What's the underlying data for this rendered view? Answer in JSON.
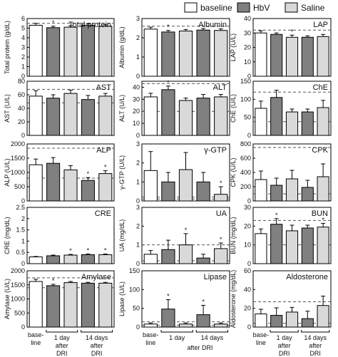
{
  "legend": {
    "items": [
      {
        "label": "baseline",
        "color": "#ffffff"
      },
      {
        "label": "HbV",
        "color": "#808080"
      },
      {
        "label": "Saline",
        "color": "#d9d9d9"
      }
    ]
  },
  "group_labels": {
    "baseline": [
      "base-",
      "line"
    ],
    "day1": [
      "1 day",
      "after",
      "DRI"
    ],
    "day14": [
      "14 days",
      "after",
      "DRI"
    ],
    "day1_short": [
      "1 day"
    ],
    "day14_short": [
      "14 days"
    ],
    "after_dri": "after DRI"
  },
  "colors": {
    "baseline": "#ffffff",
    "hbv": "#808080",
    "saline": "#d9d9d9",
    "normal_range_line": "#555555"
  },
  "chart_data": [
    {
      "type": "bar",
      "title": "Total protein",
      "ylabel": "Total protein (g/dL)",
      "ylim": [
        0,
        6
      ],
      "ticks": [
        0,
        1,
        2,
        3,
        4,
        5,
        6
      ],
      "values": [
        5.3,
        5.05,
        5.1,
        5.3,
        5.2
      ],
      "errors": [
        0.2,
        0.15,
        0.15,
        0.15,
        0.15
      ],
      "stars": [
        false,
        true,
        false,
        false,
        false
      ],
      "ref_lines": [
        5.5
      ]
    },
    {
      "type": "bar",
      "title": "Albumin",
      "ylabel": "Albumin (g/dL)",
      "ylim": [
        0,
        3
      ],
      "ticks": [
        0,
        1,
        2,
        3
      ],
      "values": [
        2.45,
        2.3,
        2.35,
        2.4,
        2.38
      ],
      "errors": [
        0.1,
        0.08,
        0.08,
        0.08,
        0.08
      ],
      "stars": [
        false,
        true,
        false,
        false,
        false
      ],
      "ref_lines": [
        2.6
      ]
    },
    {
      "type": "bar",
      "title": "LAP",
      "ylabel": "LAP (U/L)",
      "ylim": [
        0,
        40
      ],
      "ticks": [
        0,
        10,
        20,
        30,
        40
      ],
      "values": [
        30,
        29,
        27,
        27,
        27.5
      ],
      "errors": [
        1.5,
        1.0,
        1.5,
        1.0,
        1.5
      ],
      "stars": [
        false,
        false,
        true,
        false,
        false
      ],
      "ref_lines": [
        32
      ]
    },
    {
      "type": "bar",
      "title": "AST",
      "ylabel": "AST (U/L)",
      "ylim": [
        0,
        80
      ],
      "ticks": [
        0,
        20,
        40,
        60,
        80
      ],
      "values": [
        58,
        55,
        62,
        53,
        58
      ],
      "errors": [
        8,
        5,
        5,
        6,
        4
      ],
      "stars": [
        false,
        false,
        false,
        false,
        false
      ],
      "ref_lines": [
        68,
        48
      ]
    },
    {
      "type": "bar",
      "title": "ALT",
      "ylabel": "ALT (U/L)",
      "ylim": [
        0,
        45
      ],
      "ticks": [
        0,
        10,
        20,
        30,
        40
      ],
      "values": [
        32,
        38,
        29,
        31,
        32
      ],
      "errors": [
        3,
        3,
        2,
        3,
        2
      ],
      "stars": [
        false,
        true,
        false,
        false,
        false
      ],
      "ref_lines": [
        43,
        20
      ]
    },
    {
      "type": "bar",
      "title": "ChE",
      "ylabel": "ChE (U/L)",
      "ylim": [
        0,
        150
      ],
      "ticks": [
        0,
        50,
        100,
        150
      ],
      "values": [
        75,
        105,
        65,
        65,
        77
      ],
      "errors": [
        20,
        20,
        8,
        8,
        20
      ],
      "stars": [
        false,
        false,
        false,
        false,
        false
      ],
      "ref_lines": [
        120,
        38
      ]
    },
    {
      "type": "bar",
      "title": "ALP",
      "ylabel": "ALP (U/L)",
      "ylim": [
        0,
        2000
      ],
      "ticks": [
        0,
        500,
        1000,
        1500,
        2000
      ],
      "values": [
        1270,
        1320,
        1090,
        720,
        960
      ],
      "errors": [
        200,
        200,
        150,
        100,
        100
      ],
      "stars": [
        false,
        false,
        false,
        true,
        true
      ],
      "ref_lines": [
        1850,
        800
      ]
    },
    {
      "type": "bar",
      "title": "γ-GTP",
      "ylabel": "γ-GTP (U/L)",
      "ylim": [
        0,
        3
      ],
      "ticks": [
        0,
        1,
        2,
        3
      ],
      "values": [
        1.6,
        1.0,
        1.65,
        1.0,
        0.35
      ],
      "errors": [
        1.0,
        0.5,
        0.9,
        0.5,
        0.4
      ],
      "stars": [
        false,
        false,
        false,
        false,
        true
      ],
      "ref_lines": [
        0.2,
        0.1
      ]
    },
    {
      "type": "bar",
      "title": "CPK",
      "ylabel": "CPK (U/L)",
      "ylim": [
        0,
        800
      ],
      "ticks": [
        0,
        200,
        400,
        600,
        800
      ],
      "values": [
        300,
        220,
        310,
        190,
        340
      ],
      "errors": [
        120,
        100,
        120,
        100,
        180
      ],
      "stars": [
        false,
        false,
        false,
        false,
        false
      ],
      "ref_lines": [
        750,
        100
      ]
    },
    {
      "type": "bar",
      "title": "CRE",
      "ylabel": "CRE (mg/dL)",
      "ylim": [
        0,
        2.5
      ],
      "ticks": [
        0,
        0.5,
        1.0,
        1.5,
        2.0,
        2.5
      ],
      "values": [
        0.3,
        0.35,
        0.38,
        0.4,
        0.4
      ],
      "errors": [
        0.02,
        0.03,
        0.03,
        0.03,
        0.03
      ],
      "stars": [
        false,
        false,
        true,
        true,
        true
      ],
      "ref_lines": []
    },
    {
      "type": "bar",
      "title": "UA",
      "ylabel": "UA (mg/dL)",
      "ylim": [
        0,
        3
      ],
      "ticks": [
        0,
        1,
        2,
        3
      ],
      "values": [
        0.5,
        0.75,
        1.0,
        0.3,
        0.8
      ],
      "errors": [
        0.2,
        0.5,
        0.6,
        0.2,
        0.3
      ],
      "stars": [
        false,
        false,
        true,
        false,
        true
      ],
      "ref_lines": [
        1.0,
        0.15
      ]
    },
    {
      "type": "bar",
      "title": "BUN",
      "ylabel": "BUN (mg/dL)",
      "ylim": [
        0,
        30
      ],
      "ticks": [
        0,
        10,
        20,
        30
      ],
      "values": [
        16,
        21,
        17.5,
        19,
        19.5
      ],
      "errors": [
        2.5,
        3,
        3,
        1.5,
        2
      ],
      "stars": [
        false,
        true,
        false,
        false,
        true
      ],
      "ref_lines": [
        23,
        10
      ]
    },
    {
      "type": "bar",
      "title": "Amylase",
      "ylabel": "Amylase (U/L)",
      "ylim": [
        0,
        2000
      ],
      "ticks": [
        0,
        500,
        1000,
        1500,
        2000
      ],
      "values": [
        1620,
        1470,
        1580,
        1560,
        1560
      ],
      "errors": [
        80,
        50,
        40,
        30,
        30
      ],
      "stars": [
        false,
        true,
        false,
        false,
        false
      ],
      "ref_lines": [
        1750,
        1400
      ]
    },
    {
      "type": "bar",
      "title": "Lipase",
      "ylabel": "Lipase (U/L)",
      "ylim": [
        0,
        150
      ],
      "ticks": [
        0,
        50,
        100,
        150
      ],
      "values": [
        8,
        48,
        8,
        33,
        8
      ],
      "errors": [
        3,
        25,
        3,
        25,
        3
      ],
      "stars": [
        false,
        true,
        false,
        true,
        false
      ],
      "ref_lines": [
        14,
        5
      ]
    },
    {
      "type": "bar",
      "title": "Aldosterone",
      "ylabel": "Aldosterone (mg/dL)",
      "ylim": [
        0,
        60
      ],
      "ticks": [
        0,
        20,
        40,
        60
      ],
      "values": [
        14,
        12.5,
        16,
        9,
        23
      ],
      "errors": [
        5,
        8,
        5,
        8,
        10
      ],
      "stars": [
        false,
        false,
        false,
        false,
        false
      ],
      "ref_lines": [
        27,
        4
      ]
    }
  ]
}
